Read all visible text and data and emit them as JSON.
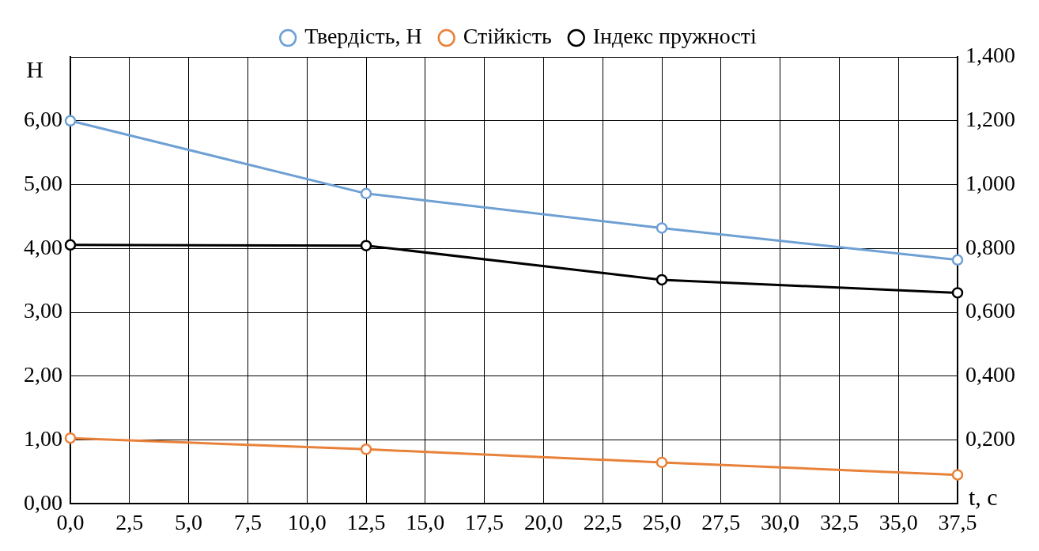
{
  "chart_data": {
    "type": "line",
    "xlabel": "t, c",
    "ylabel": "H",
    "x": [
      0,
      12.5,
      25,
      37.5
    ],
    "series": [
      {
        "name": "Твердість, H",
        "color": "#6fa0d4",
        "values": [
          6.0,
          4.86,
          4.32,
          3.82
        ]
      },
      {
        "name": "Стійкість",
        "color": "#e8823a",
        "values": [
          0.206,
          0.171,
          0.13,
          0.091
        ],
        "axis": "y2"
      },
      {
        "name": "Індекс пружності",
        "color": "#000000",
        "values": [
          0.811,
          0.809,
          0.702,
          0.661
        ],
        "axis": "y2"
      }
    ],
    "xlim": [
      0,
      37.5
    ],
    "xticks": [
      {
        "value": 0,
        "label": "0,0"
      },
      {
        "value": 2.5,
        "label": "2,5"
      },
      {
        "value": 5,
        "label": "5,0"
      },
      {
        "value": 7.5,
        "label": "7,5"
      },
      {
        "value": 10,
        "label": "10,0"
      },
      {
        "value": 12.5,
        "label": "12,5"
      },
      {
        "value": 15,
        "label": "15,0"
      },
      {
        "value": 17.5,
        "label": "17,5"
      },
      {
        "value": 20,
        "label": "20,0"
      },
      {
        "value": 22.5,
        "label": "22,5"
      },
      {
        "value": 25,
        "label": "25,0"
      },
      {
        "value": 27.5,
        "label": "27,5"
      },
      {
        "value": 30,
        "label": "30,0"
      },
      {
        "value": 32.5,
        "label": "32,5"
      },
      {
        "value": 35,
        "label": "35,0"
      },
      {
        "value": 37.5,
        "label": "37,5"
      }
    ],
    "ylim": [
      0,
      7
    ],
    "yticks": [
      {
        "value": 0,
        "label": "0,00"
      },
      {
        "value": 1,
        "label": "1,00"
      },
      {
        "value": 2,
        "label": "2,00"
      },
      {
        "value": 3,
        "label": "3,00"
      },
      {
        "value": 4,
        "label": "4,00"
      },
      {
        "value": 5,
        "label": "5,00"
      },
      {
        "value": 6,
        "label": "6,00"
      },
      {
        "value": 7,
        "label": null
      }
    ],
    "y2lim": [
      0,
      1.4
    ],
    "y2ticks": [
      {
        "value": 0,
        "label": null
      },
      {
        "value": 0.2,
        "label": "0,200"
      },
      {
        "value": 0.4,
        "label": "0,400"
      },
      {
        "value": 0.6,
        "label": "0,600"
      },
      {
        "value": 0.8,
        "label": "0,800"
      },
      {
        "value": 1.0,
        "label": "1,000"
      },
      {
        "value": 1.2,
        "label": "1,200"
      },
      {
        "value": 1.4,
        "label": "1,400"
      }
    ],
    "grid": true,
    "legend": "top",
    "marker": "circle",
    "line_style": "solid"
  }
}
